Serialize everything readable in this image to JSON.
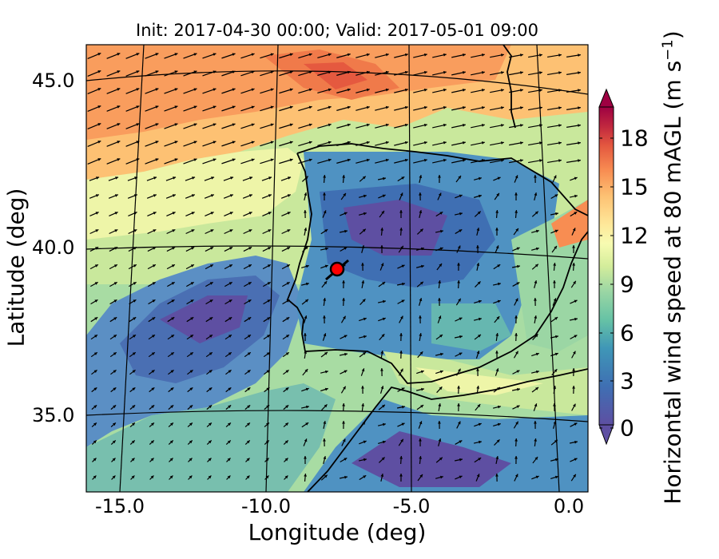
{
  "title": "Init: 2017-04-30 00:00; Valid: 2017-05-01 09:00",
  "xlabel": "Longitude (deg)",
  "ylabel": "Latitude (deg)",
  "colorbar_label": "Horizontal wind speed at 80 mAGL (m s",
  "colorbar_unit_exp": "−1",
  "colorbar_close": ")",
  "chart_data": {
    "type": "heatmap",
    "title": "Init: 2017-04-30 00:00; Valid: 2017-05-01 09:00",
    "xlabel": "Longitude (deg)",
    "ylabel": "Latitude (deg)",
    "x_ticks": [
      "-15.0",
      "-10.0",
      "-5.0",
      "0.0"
    ],
    "y_ticks": [
      "35.0",
      "40.0",
      "45.0"
    ],
    "xlim": [
      -16,
      0.2
    ],
    "ylim": [
      33,
      46
    ],
    "colorbar": {
      "label": "Horizontal wind speed at 80 mAGL (m s−1)",
      "ticks": [
        "0",
        "3",
        "6",
        "9",
        "12",
        "15",
        "18"
      ],
      "range": [
        0,
        20
      ],
      "colors": [
        "#5e4fa2",
        "#3f6fb3",
        "#3f96b7",
        "#66c2a5",
        "#9bd6a4",
        "#d4ed9b",
        "#f7fbb1",
        "#fee89a",
        "#fdc173",
        "#f88d52",
        "#e3573f",
        "#c0273f",
        "#9e0142"
      ]
    },
    "marker": {
      "lon": -7.7,
      "lat": 39.3,
      "color": "#ff0000"
    }
  }
}
